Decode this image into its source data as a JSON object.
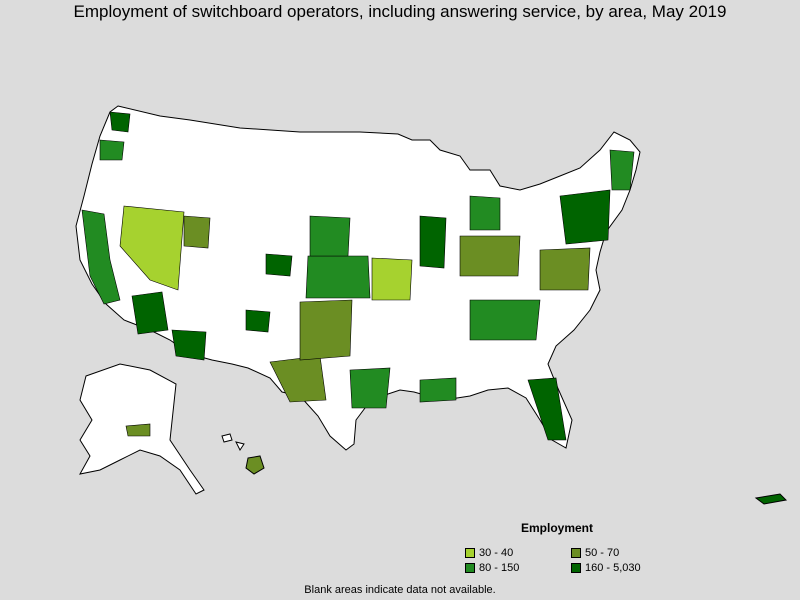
{
  "title": "Employment of switchboard operators, including answering service, by area, May 2019",
  "legend": {
    "title": "Employment",
    "items": [
      {
        "label": "30 - 40",
        "color": "#a6d22f"
      },
      {
        "label": "50 - 70",
        "color": "#6b8e23"
      },
      {
        "label": "80 - 150",
        "color": "#228b22"
      },
      {
        "label": "160 - 5,030",
        "color": "#006400"
      }
    ]
  },
  "note": "Blank areas indicate data not available.",
  "colors": {
    "background": "#dcdcdc",
    "no_data": "#ffffff",
    "border": "#000000"
  }
}
